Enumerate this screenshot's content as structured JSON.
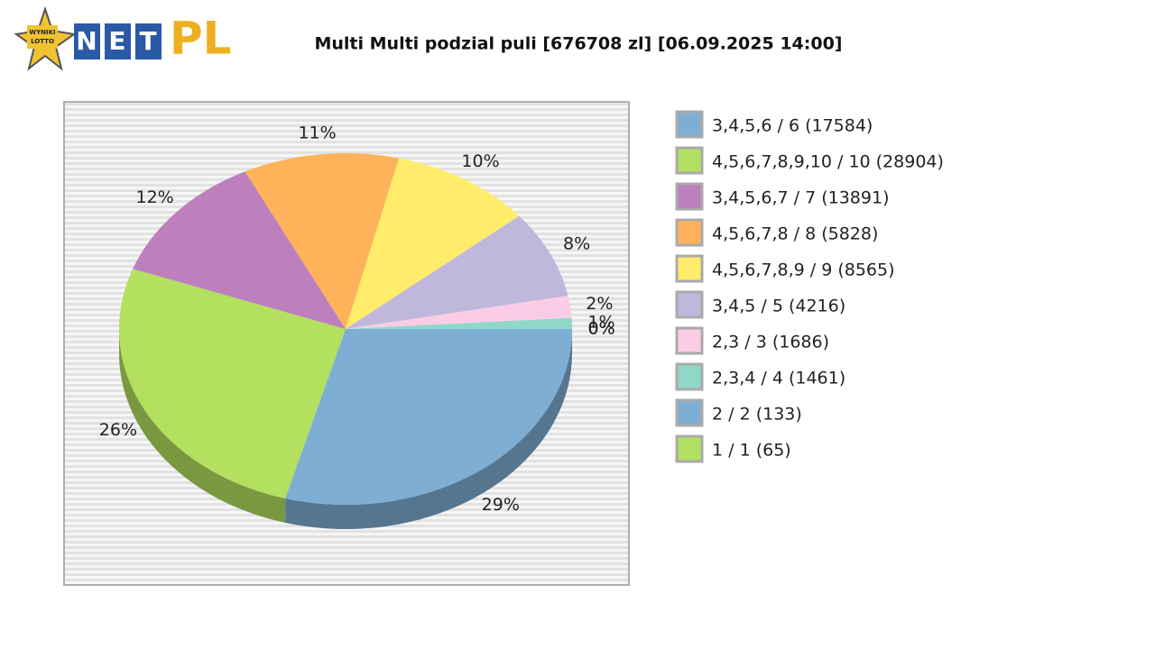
{
  "logo": {
    "badge": [
      "WYNIKI",
      "LOTTO"
    ],
    "net": [
      "N",
      "E",
      "T"
    ],
    "pl": "PL"
  },
  "chart_data": {
    "type": "pie",
    "title": "Multi Multi podzial puli [676708 zl] [06.09.2025 14:00]",
    "categories": [
      "3,4,5,6 / 6 (17584)",
      "4,5,6,7,8,9,10 / 10 (28904)",
      "3,4,5,6,7 / 7 (13891)",
      "4,5,6,7,8 / 8 (5828)",
      "4,5,6,7,8,9 / 9 (8565)",
      "3,4,5 / 5 (4216)",
      "2,3 / 3 (1686)",
      "2,3,4 / 4 (1461)",
      "2 / 2 (133)",
      "1 / 1 (65)"
    ],
    "values": [
      29,
      26,
      12,
      11,
      10,
      8,
      2,
      1,
      0,
      0
    ],
    "value_labels": [
      "29%",
      "26%",
      "12%",
      "11%",
      "10%",
      "8%",
      "2%",
      "1%",
      "0%",
      "0%"
    ],
    "colors": [
      "#7eaed4",
      "#b3e05e",
      "#bd7fbd",
      "#feb35a",
      "#feec6a",
      "#bfb8dc",
      "#fccce6",
      "#8fd8c8",
      "#7eaed4",
      "#b3e05e"
    ],
    "legend": "right"
  }
}
